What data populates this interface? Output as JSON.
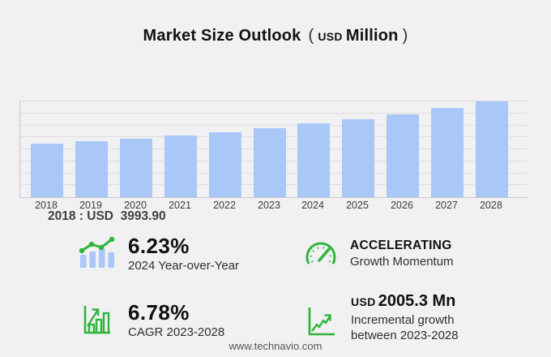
{
  "title": {
    "main": "Market Size Outlook",
    "open_paren": "(",
    "currency": "USD",
    "unit": "Million",
    "close_paren": ")"
  },
  "chart_data": {
    "type": "bar",
    "title": "Market Size Outlook (USD Million)",
    "xlabel": "",
    "ylabel": "",
    "categories": [
      "2018",
      "2019",
      "2020",
      "2021",
      "2022",
      "2023",
      "2024",
      "2025",
      "2026",
      "2027",
      "2028"
    ],
    "values": [
      3993.9,
      4150,
      4350,
      4580,
      4860,
      5161,
      5483,
      5830,
      6200,
      6650,
      7166
    ],
    "labeled_point": {
      "category": "2018",
      "value": 3993.9,
      "label": "2018 : USD  3993.90"
    },
    "ylim": [
      0,
      7200
    ],
    "gridlines": 9,
    "legend": "none",
    "bar_color": "#a9c7f7"
  },
  "stats": {
    "yoy": {
      "icon": "bar-trend-icon",
      "value": "6.23%",
      "label": "2024 Year-over-Year"
    },
    "momentum": {
      "icon": "speedometer-icon",
      "value": "ACCELERATING",
      "label": "Growth Momentum"
    },
    "cagr": {
      "icon": "bar-growth-icon",
      "value": "6.78%",
      "label": "CAGR 2023-2028"
    },
    "incremental": {
      "icon": "line-chart-arrow-icon",
      "currency": "USD",
      "value": "2005.3 Mn",
      "label_line1": "Incremental growth",
      "label_line2": "between 2023-2028"
    }
  },
  "footer": {
    "url": "www.technavio.com"
  },
  "colors": {
    "accent_green": "#2fb53c",
    "bar_blue": "#a9c7f7",
    "background": "#f1f1f4"
  }
}
